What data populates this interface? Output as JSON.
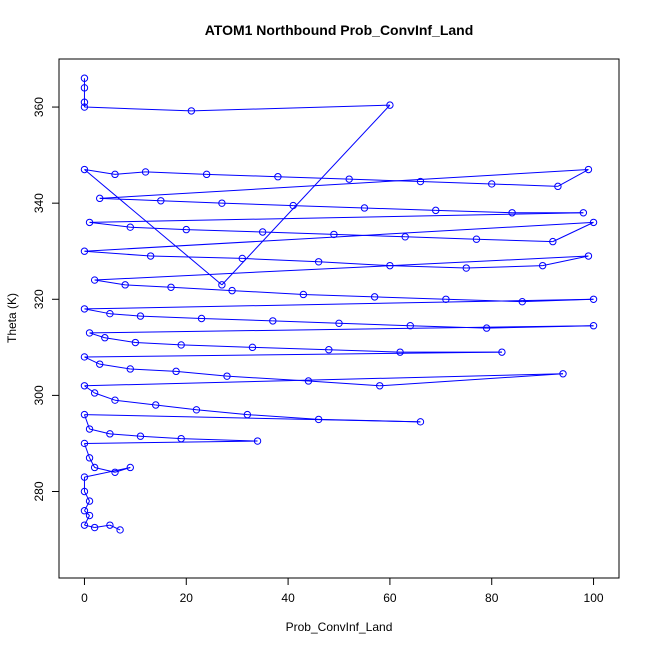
{
  "chart_data": {
    "type": "line",
    "title": "ATOM1 Northbound Prob_ConvInf_Land",
    "xlabel": "Prob_ConvInf_Land",
    "ylabel": "Theta (K)",
    "xlim": [
      -5,
      105
    ],
    "ylim": [
      262,
      370
    ],
    "x_ticks": [
      0,
      20,
      40,
      60,
      80,
      100
    ],
    "y_ticks": [
      280,
      300,
      320,
      340,
      360
    ],
    "grid": false,
    "legend": "none",
    "series_color": "#0000ff",
    "marker": "open-circle",
    "series": [
      {
        "points": [
          [
            0,
            366
          ],
          [
            0,
            364
          ],
          [
            0,
            361
          ],
          [
            0,
            360
          ],
          [
            21,
            359.2
          ],
          [
            60,
            360.4
          ],
          [
            27,
            323
          ],
          [
            0,
            347
          ],
          [
            6,
            346
          ],
          [
            12,
            346.5
          ],
          [
            24,
            346
          ],
          [
            38,
            345.5
          ],
          [
            52,
            345
          ],
          [
            66,
            344.5
          ],
          [
            80,
            344
          ],
          [
            93,
            343.5
          ],
          [
            99,
            347
          ],
          [
            3,
            341
          ],
          [
            15,
            340.5
          ],
          [
            27,
            340
          ],
          [
            41,
            339.5
          ],
          [
            55,
            339
          ],
          [
            69,
            338.5
          ],
          [
            84,
            338
          ],
          [
            98,
            338
          ],
          [
            1,
            336
          ],
          [
            9,
            335
          ],
          [
            20,
            334.5
          ],
          [
            35,
            334
          ],
          [
            49,
            333.5
          ],
          [
            63,
            333
          ],
          [
            77,
            332.5
          ],
          [
            92,
            332
          ],
          [
            100,
            336
          ],
          [
            0,
            330
          ],
          [
            13,
            329
          ],
          [
            31,
            328.5
          ],
          [
            46,
            327.8
          ],
          [
            60,
            327
          ],
          [
            75,
            326.5
          ],
          [
            90,
            327
          ],
          [
            99,
            329
          ],
          [
            2,
            324
          ],
          [
            8,
            323
          ],
          [
            17,
            322.5
          ],
          [
            29,
            321.8
          ],
          [
            43,
            321
          ],
          [
            57,
            320.5
          ],
          [
            71,
            320
          ],
          [
            86,
            319.5
          ],
          [
            100,
            320
          ],
          [
            0,
            318
          ],
          [
            5,
            317
          ],
          [
            11,
            316.5
          ],
          [
            23,
            316
          ],
          [
            37,
            315.5
          ],
          [
            50,
            315
          ],
          [
            64,
            314.5
          ],
          [
            79,
            314
          ],
          [
            100,
            314.5
          ],
          [
            1,
            313
          ],
          [
            4,
            312
          ],
          [
            10,
            311
          ],
          [
            19,
            310.5
          ],
          [
            33,
            310
          ],
          [
            48,
            309.5
          ],
          [
            62,
            309
          ],
          [
            82,
            309
          ],
          [
            0,
            308
          ],
          [
            3,
            306.5
          ],
          [
            9,
            305.5
          ],
          [
            18,
            305
          ],
          [
            28,
            304
          ],
          [
            44,
            303
          ],
          [
            58,
            302
          ],
          [
            94,
            304.5
          ],
          [
            0,
            302
          ],
          [
            2,
            300.5
          ],
          [
            6,
            299
          ],
          [
            14,
            298
          ],
          [
            22,
            297
          ],
          [
            32,
            296
          ],
          [
            46,
            295
          ],
          [
            66,
            294.5
          ],
          [
            0,
            296
          ],
          [
            1,
            293
          ],
          [
            5,
            292
          ],
          [
            11,
            291.5
          ],
          [
            19,
            291
          ],
          [
            34,
            290.5
          ],
          [
            0,
            290
          ],
          [
            1,
            287
          ],
          [
            2,
            285
          ],
          [
            6,
            284
          ],
          [
            9,
            285
          ],
          [
            0,
            283
          ],
          [
            0,
            280
          ],
          [
            1,
            278
          ],
          [
            0,
            276
          ],
          [
            1,
            275
          ],
          [
            0,
            273
          ],
          [
            2,
            272.5
          ],
          [
            5,
            273
          ],
          [
            7,
            272
          ]
        ]
      }
    ]
  }
}
